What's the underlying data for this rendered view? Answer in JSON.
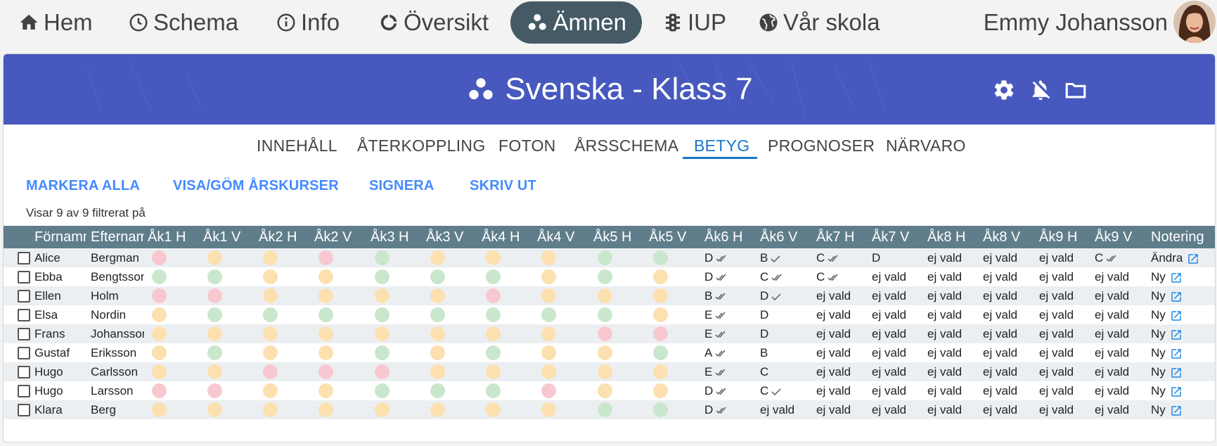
{
  "nav": {
    "items": [
      {
        "label": "Hem",
        "icon": "home-icon"
      },
      {
        "label": "Schema",
        "icon": "clock-icon"
      },
      {
        "label": "Info",
        "icon": "info-icon"
      },
      {
        "label": "Översikt",
        "icon": "progress-circle-icon"
      },
      {
        "label": "Ämnen",
        "icon": "dots-icon",
        "active": true
      },
      {
        "label": "IUP",
        "icon": "traffic-light-icon"
      },
      {
        "label": "Vår skola",
        "icon": "globe-icon"
      }
    ],
    "user_name": "Emmy Johansson"
  },
  "banner": {
    "title": "Svenska - Klass 7",
    "color": "#4759be",
    "icons": [
      "gear-icon",
      "bell-off-icon",
      "folder-icon"
    ]
  },
  "tabs": [
    "INNEHÅLL",
    "ÅTERKOPPLING",
    "FOTON",
    "ÅRSSCHEMA",
    "BETYG",
    "PROGNOSER",
    "NÄRVARO"
  ],
  "active_tab": "BETYG",
  "actions": [
    "MARKERA ALLA",
    "VISA/GÖM ÅRSKURSER",
    "SIGNERA",
    "SKRIV UT"
  ],
  "filter_info": "Visar 9 av 9 filtrerat på",
  "table": {
    "headers": [
      "Förnamn",
      "Efternamn",
      "Åk1 H",
      "Åk1 V",
      "Åk2 H",
      "Åk2 V",
      "Åk3 H",
      "Åk3 V",
      "Åk4 H",
      "Åk4 V",
      "Åk5 H",
      "Åk5 V",
      "Åk6 H",
      "Åk6 V",
      "Åk7 H",
      "Åk7 V",
      "Åk8 H",
      "Åk8 V",
      "Åk9 H",
      "Åk9 V",
      "Notering"
    ],
    "status_colors": {
      "red": "#f8c8d0",
      "orange": "#fde0b0",
      "green": "#c9e7cc"
    },
    "rows": [
      {
        "first": "Alice",
        "last": "Bergman",
        "dots": [
          "red",
          "orange",
          "orange",
          "red",
          "green",
          "orange",
          "orange",
          "orange",
          "green",
          "green"
        ],
        "grades": [
          [
            "D",
            "double"
          ],
          [
            "B",
            "single"
          ],
          [
            "C",
            "double"
          ],
          [
            "D",
            ""
          ],
          [
            "ej vald",
            ""
          ],
          [
            "ej vald",
            ""
          ],
          [
            "ej vald",
            ""
          ],
          [
            "C",
            "double"
          ]
        ],
        "note": "Ändra"
      },
      {
        "first": "Ebba",
        "last": "Bengtsson",
        "dots": [
          "green",
          "green",
          "orange",
          "orange",
          "green",
          "green",
          "green",
          "orange",
          "green",
          "orange"
        ],
        "grades": [
          [
            "D",
            "double"
          ],
          [
            "C",
            "double"
          ],
          [
            "C",
            "double"
          ],
          [
            "ej vald",
            ""
          ],
          [
            "ej vald",
            ""
          ],
          [
            "ej vald",
            ""
          ],
          [
            "ej vald",
            ""
          ],
          [
            "ej vald",
            ""
          ]
        ],
        "note": "Ny"
      },
      {
        "first": "Ellen",
        "last": "Holm",
        "dots": [
          "red",
          "red",
          "orange",
          "orange",
          "orange",
          "orange",
          "red",
          "orange",
          "orange",
          "orange"
        ],
        "grades": [
          [
            "B",
            "double"
          ],
          [
            "D",
            "single"
          ],
          [
            "ej vald",
            ""
          ],
          [
            "ej vald",
            ""
          ],
          [
            "ej vald",
            ""
          ],
          [
            "ej vald",
            ""
          ],
          [
            "ej vald",
            ""
          ],
          [
            "ej vald",
            ""
          ]
        ],
        "note": "Ny"
      },
      {
        "first": "Elsa",
        "last": "Nordin",
        "dots": [
          "orange",
          "green",
          "green",
          "green",
          "green",
          "green",
          "green",
          "green",
          "green",
          "orange"
        ],
        "grades": [
          [
            "E",
            "double"
          ],
          [
            "D",
            ""
          ],
          [
            "ej vald",
            ""
          ],
          [
            "ej vald",
            ""
          ],
          [
            "ej vald",
            ""
          ],
          [
            "ej vald",
            ""
          ],
          [
            "ej vald",
            ""
          ],
          [
            "ej vald",
            ""
          ]
        ],
        "note": "Ny"
      },
      {
        "first": "Frans",
        "last": "Johansson",
        "dots": [
          "orange",
          "orange",
          "orange",
          "orange",
          "orange",
          "orange",
          "orange",
          "orange",
          "red",
          "red"
        ],
        "grades": [
          [
            "E",
            "double"
          ],
          [
            "D",
            ""
          ],
          [
            "ej vald",
            ""
          ],
          [
            "ej vald",
            ""
          ],
          [
            "ej vald",
            ""
          ],
          [
            "ej vald",
            ""
          ],
          [
            "ej vald",
            ""
          ],
          [
            "ej vald",
            ""
          ]
        ],
        "note": "Ny"
      },
      {
        "first": "Gustaf",
        "last": "Eriksson",
        "dots": [
          "orange",
          "green",
          "orange",
          "orange",
          "green",
          "orange",
          "green",
          "orange",
          "orange",
          "green"
        ],
        "grades": [
          [
            "A",
            "double"
          ],
          [
            "B",
            ""
          ],
          [
            "ej vald",
            ""
          ],
          [
            "ej vald",
            ""
          ],
          [
            "ej vald",
            ""
          ],
          [
            "ej vald",
            ""
          ],
          [
            "ej vald",
            ""
          ],
          [
            "ej vald",
            ""
          ]
        ],
        "note": "Ny"
      },
      {
        "first": "Hugo",
        "last": "Carlsson",
        "dots": [
          "orange",
          "orange",
          "red",
          "red",
          "red",
          "orange",
          "orange",
          "orange",
          "orange",
          "orange"
        ],
        "grades": [
          [
            "E",
            "double"
          ],
          [
            "C",
            ""
          ],
          [
            "ej vald",
            ""
          ],
          [
            "ej vald",
            ""
          ],
          [
            "ej vald",
            ""
          ],
          [
            "ej vald",
            ""
          ],
          [
            "ej vald",
            ""
          ],
          [
            "ej vald",
            ""
          ]
        ],
        "note": "Ny"
      },
      {
        "first": "Hugo",
        "last": "Larsson",
        "dots": [
          "red",
          "red",
          "orange",
          "orange",
          "green",
          "green",
          "green",
          "red",
          "orange",
          "orange"
        ],
        "grades": [
          [
            "D",
            "double"
          ],
          [
            "C",
            "single"
          ],
          [
            "ej vald",
            ""
          ],
          [
            "ej vald",
            ""
          ],
          [
            "ej vald",
            ""
          ],
          [
            "ej vald",
            ""
          ],
          [
            "ej vald",
            ""
          ],
          [
            "ej vald",
            ""
          ]
        ],
        "note": "Ny"
      },
      {
        "first": "Klara",
        "last": "Berg",
        "dots": [
          "orange",
          "orange",
          "orange",
          "orange",
          "orange",
          "orange",
          "orange",
          "orange",
          "green",
          "green"
        ],
        "grades": [
          [
            "D",
            "double"
          ],
          [
            "ej vald",
            ""
          ],
          [
            "ej vald",
            ""
          ],
          [
            "ej vald",
            ""
          ],
          [
            "ej vald",
            ""
          ],
          [
            "ej vald",
            ""
          ],
          [
            "ej vald",
            ""
          ],
          [
            "ej vald",
            ""
          ]
        ],
        "note": "Ny"
      }
    ]
  }
}
